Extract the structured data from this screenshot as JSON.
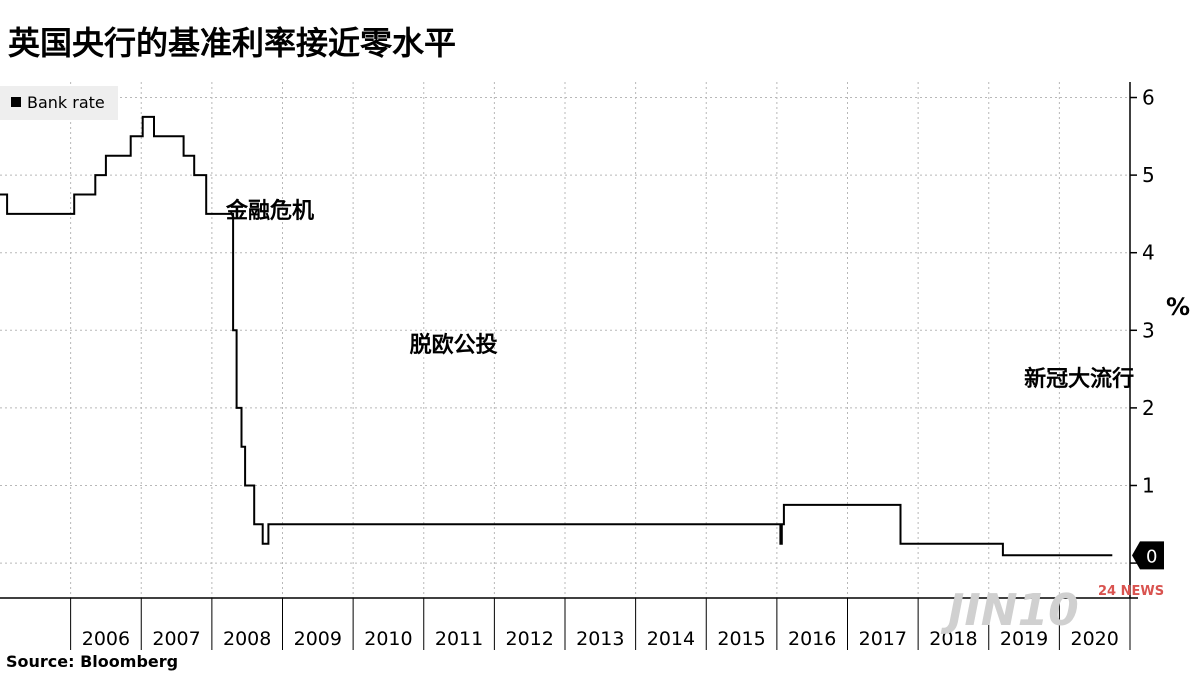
{
  "title": "英国央行的基准利率接近零水平",
  "source": "Source:  Bloomberg",
  "watermark": {
    "brand": "JIN10",
    "tag": "24 NEWS",
    "color": "#cfcfcf",
    "tag_color": "#d9534f"
  },
  "chart_data": {
    "type": "line",
    "step": true,
    "unit": "%",
    "x_domain": [
      2005.0,
      2021.0
    ],
    "ylim": [
      -0.45,
      6.2
    ],
    "y_axis_position": "right",
    "y_ticks": [
      "0",
      "1",
      "2",
      "3",
      "4",
      "5",
      "6"
    ],
    "x_ticks": [
      "2006",
      "2007",
      "2008",
      "2009",
      "2010",
      "2011",
      "2012",
      "2013",
      "2014",
      "2015",
      "2016",
      "2017",
      "2018",
      "2019",
      "2020"
    ],
    "grid": true,
    "legend": {
      "position": "top-left",
      "entries": [
        "Bank rate"
      ]
    },
    "last_value_label": "0",
    "series": [
      {
        "name": "Bank rate",
        "color": "#000000",
        "x": [
          2005.0,
          2005.1,
          2006.05,
          2006.35,
          2006.5,
          2006.85,
          2007.02,
          2007.18,
          2007.6,
          2007.75,
          2007.92,
          2008.3,
          2008.35,
          2008.42,
          2008.47,
          2008.6,
          2008.72,
          2008.8,
          2016.05,
          2016.07,
          2016.1,
          2017.3,
          2017.75,
          2019.2,
          2019.25,
          2019.5
        ],
        "values": [
          4.75,
          4.5,
          4.75,
          5.0,
          5.25,
          5.5,
          5.75,
          5.5,
          5.25,
          5.0,
          4.5,
          3.0,
          2.0,
          1.5,
          1.0,
          0.5,
          0.25,
          0.5,
          0.25,
          0.5,
          0.75,
          0.75,
          0.25,
          0.1,
          0.1,
          0.1
        ]
      }
    ],
    "annotations": [
      {
        "text": "金融危机",
        "x": 2008.2,
        "y": 4.45
      },
      {
        "text": "脱欧公投",
        "x": 2010.8,
        "y": 2.72
      },
      {
        "text": "新冠大流行",
        "x": 2019.5,
        "y": 2.28
      }
    ]
  }
}
